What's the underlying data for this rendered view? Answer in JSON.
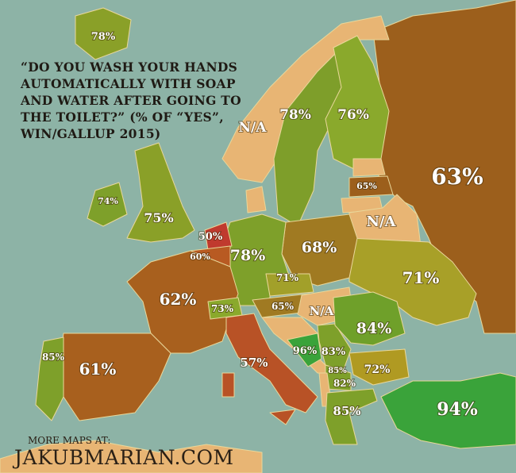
{
  "title": "“Do you wash your hands automatically with soap and water after going to the toilet?” (% of “yes”, WIN/Gallup 2015)",
  "footer": {
    "more_maps": "More maps at:",
    "site": "JAKUBMARIAN.COM"
  },
  "colors": {
    "sea": "#8db3a6",
    "na": "#e8b574",
    "green": "#7ea02a",
    "bright_green": "#3aa33a",
    "olive": "#a8a028",
    "brown": "#9c5f1c",
    "red_brown": "#b85226",
    "red": "#c03a2e"
  },
  "countries": {
    "iceland": "78%",
    "norway": "N/A",
    "sweden": "78%",
    "finland": "76%",
    "russia": "63%",
    "latvia": "65%",
    "belarus": "N/A",
    "ireland": "74%",
    "uk": "75%",
    "netherlands": "50%",
    "belgium": "60%",
    "germany": "78%",
    "poland": "68%",
    "czechia": "71%",
    "austria": "65%",
    "switzerland": "73%",
    "hungary": "N/A",
    "france": "62%",
    "spain": "61%",
    "portugal": "85%",
    "italy": "57%",
    "ukraine": "71%",
    "romania": "84%",
    "bosnia": "96%",
    "serbia": "83%",
    "montenegro": "85%",
    "macedonia": "82%",
    "bulgaria": "72%",
    "greece": "85%",
    "turkey": "94%"
  }
}
